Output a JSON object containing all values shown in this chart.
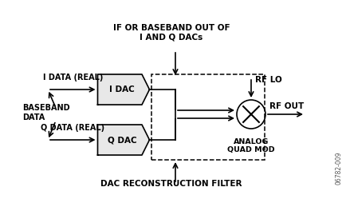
{
  "bg_color": "#ffffff",
  "title_text": "IF OR BASEBAND OUT OF\nI AND Q DACs",
  "footer_text": "DAC RECONSTRUCTION FILTER",
  "watermark": "06782-009",
  "i_dac_label": "I DAC",
  "q_dac_label": "Q DAC",
  "i_data_label": "I DATA (REAL)",
  "q_data_label": "Q DATA (REAL)",
  "baseband_label": "BASEBAND\nDATA",
  "rf_lo_label": "RF LO",
  "rf_out_label": "RF OUT",
  "quad_mod_label": "ANALOG\nQUAD MOD",
  "line_color": "#000000",
  "dac_box_color": "#d3d3d3",
  "figsize": [
    4.35,
    2.49
  ],
  "dpi": 100
}
